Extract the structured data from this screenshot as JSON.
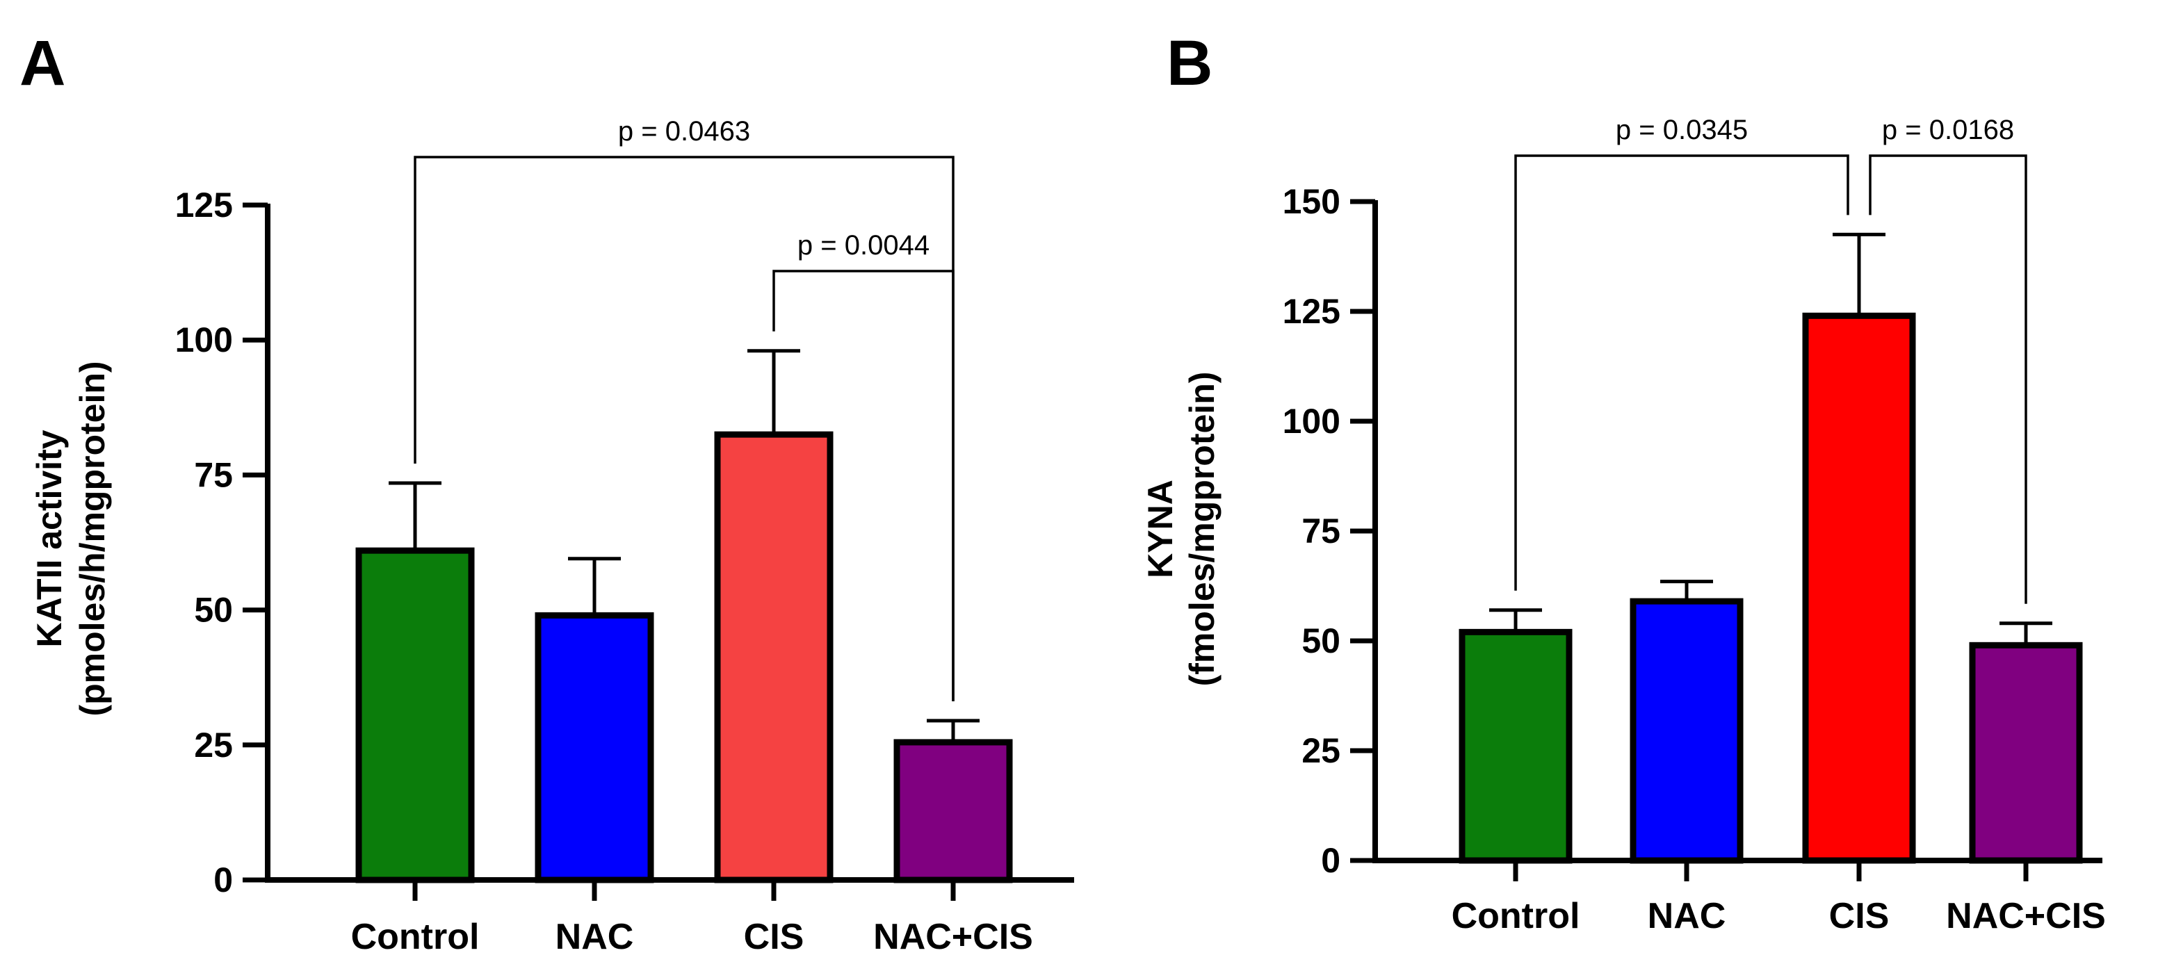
{
  "panels": [
    {
      "letter": "A",
      "chart_data": {
        "type": "bar",
        "title": "",
        "ylabel_line1": "KATII activity",
        "ylabel_line2": "(pmoles/h/mgprotein)",
        "xlabel": "",
        "ylim": [
          0,
          125
        ],
        "yticks": [
          0,
          25,
          50,
          75,
          100,
          125
        ],
        "categories": [
          "Control",
          "NAC",
          "CIS",
          "NAC+CIS"
        ],
        "values": [
          61,
          49,
          82.5,
          25.5
        ],
        "errors": [
          12.5,
          10.5,
          15.5,
          4
        ],
        "colors": [
          "#0b7d0b",
          "#0000ff",
          "#f54242",
          "#800080"
        ],
        "comparisons": [
          {
            "label": "p = 0.0463",
            "from": 0,
            "to": 3
          },
          {
            "label": "p = 0.0044",
            "from": 2,
            "to": 3
          }
        ]
      }
    },
    {
      "letter": "B",
      "chart_data": {
        "type": "bar",
        "title": "",
        "ylabel_line1": "KYNA",
        "ylabel_line2": "(fmoles/mgprotein)",
        "xlabel": "",
        "ylim": [
          0,
          150
        ],
        "yticks": [
          0,
          25,
          50,
          75,
          100,
          125,
          150
        ],
        "categories": [
          "Control",
          "NAC",
          "CIS",
          "NAC+CIS"
        ],
        "values": [
          52,
          59,
          124,
          49
        ],
        "errors": [
          5,
          4.5,
          18.5,
          5
        ],
        "colors": [
          "#0b7d0b",
          "#0000ff",
          "#ff0000",
          "#800080"
        ],
        "comparisons": [
          {
            "label": "p = 0.0345",
            "from": 0,
            "to": 2
          },
          {
            "label": "p = 0.0168",
            "from": 2,
            "to": 3
          }
        ]
      }
    }
  ]
}
